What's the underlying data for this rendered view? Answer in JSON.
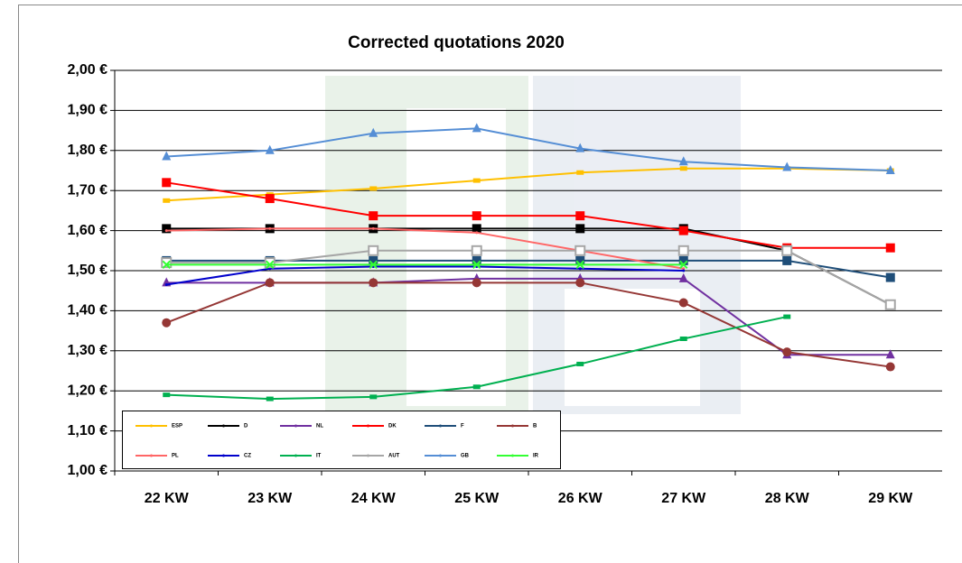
{
  "chart_data": {
    "type": "line",
    "title": "Corrected quotations 2020",
    "categories": [
      "22 KW",
      "23 KW",
      "24 KW",
      "25 KW",
      "26 KW",
      "27 KW",
      "28 KW",
      "29 KW"
    ],
    "ylim": [
      1.0,
      2.0
    ],
    "yticks": [
      {
        "value": 1.0,
        "label": "1,00 €"
      },
      {
        "value": 1.1,
        "label": "1,10 €"
      },
      {
        "value": 1.2,
        "label": "1,20 €"
      },
      {
        "value": 1.3,
        "label": "1,30 €"
      },
      {
        "value": 1.4,
        "label": "1,40 €"
      },
      {
        "value": 1.5,
        "label": "1,50 €"
      },
      {
        "value": 1.6,
        "label": "1,60 €"
      },
      {
        "value": 1.7,
        "label": "1,70 €"
      },
      {
        "value": 1.8,
        "label": "1,80 €"
      },
      {
        "value": 1.9,
        "label": "1,90 €"
      },
      {
        "value": 2.0,
        "label": "2,00 €"
      }
    ],
    "grid": true,
    "series": [
      {
        "name": "ESP",
        "color": "#FFC000",
        "marker": "dash",
        "values": [
          1.675,
          1.69,
          1.705,
          1.725,
          1.745,
          1.755,
          1.755,
          1.75
        ]
      },
      {
        "name": "D",
        "color": "#000000",
        "marker": "square",
        "values": [
          1.605,
          1.605,
          1.605,
          1.605,
          1.605,
          1.605,
          1.55,
          1.415
        ]
      },
      {
        "name": "NL",
        "color": "#7030A0",
        "marker": "triangle",
        "values": [
          1.47,
          1.47,
          1.47,
          1.48,
          1.48,
          1.48,
          1.29,
          1.29
        ]
      },
      {
        "name": "DK",
        "color": "#FF0000",
        "marker": "square",
        "values": [
          1.72,
          1.68,
          1.637,
          1.637,
          1.637,
          1.6,
          1.557,
          1.557
        ]
      },
      {
        "name": "F",
        "color": "#1F4E79",
        "marker": "square",
        "values": [
          1.525,
          1.525,
          1.525,
          1.525,
          1.525,
          1.525,
          1.525,
          1.483
        ]
      },
      {
        "name": "B",
        "color": "#953735",
        "marker": "circle",
        "values": [
          1.37,
          1.47,
          1.47,
          1.47,
          1.47,
          1.42,
          1.297,
          1.26
        ]
      },
      {
        "name": "PL",
        "color": "#FF6666",
        "marker": "none",
        "values": [
          1.6,
          1.605,
          1.605,
          1.595,
          1.55,
          1.505,
          null,
          null
        ]
      },
      {
        "name": "CZ",
        "color": "#0000CC",
        "marker": "none",
        "values": [
          1.465,
          1.505,
          1.51,
          1.51,
          1.505,
          1.5,
          null,
          null
        ]
      },
      {
        "name": "IT",
        "color": "#00B050",
        "marker": "dash",
        "values": [
          1.19,
          1.18,
          1.185,
          1.21,
          1.267,
          1.33,
          1.385,
          null
        ]
      },
      {
        "name": "AUT",
        "color": "#A6A6A6",
        "marker": "opensquare",
        "values": [
          1.52,
          1.52,
          1.55,
          1.55,
          1.55,
          1.55,
          1.55,
          1.415
        ]
      },
      {
        "name": "GB",
        "color": "#558ED5",
        "marker": "triangle",
        "values": [
          1.785,
          1.8,
          1.843,
          1.855,
          1.805,
          1.772,
          1.758,
          1.75
        ]
      },
      {
        "name": "IR",
        "color": "#33FF33",
        "marker": "cross",
        "values": [
          1.515,
          1.515,
          1.515,
          1.515,
          1.515,
          1.515,
          null,
          null
        ]
      }
    ]
  }
}
